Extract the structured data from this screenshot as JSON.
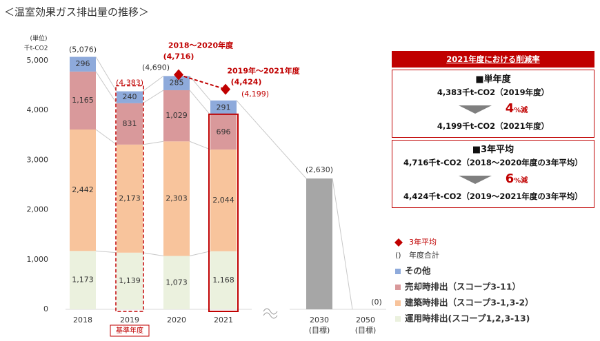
{
  "chart_data": {
    "type": "stacked_bar",
    "title": "＜温室効果ガス排出量の推移＞",
    "y_unit": [
      "(単位)",
      "千t-CO2"
    ],
    "categories": [
      "2018",
      "2019",
      "2020",
      "2021",
      "2030",
      "2050"
    ],
    "category_notes": [
      null,
      "基準年度",
      null,
      null,
      "(目標)",
      "(目標)"
    ],
    "ylim": [
      0,
      5000
    ],
    "yticks": [
      0,
      {
        "value": 1000,
        "label": "1,000"
      },
      {
        "value": 2000,
        "label": "2,000"
      },
      {
        "value": 3000,
        "label": "3,000"
      },
      {
        "value": 4000,
        "label": "4,000"
      },
      {
        "value": 5000,
        "label": "5,000"
      }
    ],
    "series": [
      {
        "name": "運用時排出(スコープ1,2,3-13)",
        "color": "#ebf1de",
        "values": [
          1173,
          1139,
          1073,
          1168,
          null,
          null
        ],
        "value_labels": [
          "1,173",
          "1,139",
          "1,073",
          "1,168",
          null,
          null
        ]
      },
      {
        "name": "建築時排出（スコープ3-1,3-2）",
        "color": "#f8c49c",
        "values": [
          2442,
          2173,
          2303,
          2044,
          null,
          null
        ],
        "value_labels": [
          "2,442",
          "2,173",
          "2,303",
          "2,044",
          null,
          null
        ]
      },
      {
        "name": "売却時排出（スコープ3-11）",
        "color": "#d9999b",
        "values": [
          1165,
          831,
          1029,
          696,
          null,
          null
        ],
        "value_labels": [
          "1,165",
          "831",
          "1,029",
          "696",
          null,
          null
        ]
      },
      {
        "name": "その他",
        "color": "#8eaadb",
        "values": [
          296,
          240,
          285,
          291,
          null,
          null
        ],
        "value_labels": [
          "296",
          "240",
          "285",
          "291",
          null,
          null
        ]
      }
    ],
    "target": {
      "color": "#a6a6a6",
      "values": [
        null,
        null,
        null,
        null,
        2630,
        0
      ]
    },
    "totals": {
      "name": "年度合計",
      "marker": "()",
      "values": [
        5076,
        4383,
        4690,
        4199,
        2630,
        0
      ],
      "value_labels": [
        "(5,076)",
        "(4,383)",
        "(4,690)",
        "(4,199)",
        "(2,630)",
        "(0)"
      ]
    },
    "average": {
      "name": "3年平均",
      "color": "#c00000",
      "values": [
        null,
        null,
        4716,
        4424,
        null,
        null
      ],
      "value_labels": [
        null,
        null,
        "(4,716)",
        "(4,424)",
        null,
        null
      ],
      "labels": [
        null,
        null,
        "2018～2020年度",
        "2019年～2021年度",
        null,
        null
      ]
    }
  },
  "panel": {
    "title": "2021年度における削減率",
    "sections": [
      {
        "heading": "■単年度",
        "from": "4,383千t-CO2（2019年度）",
        "rate": "4",
        "rate_unit": "%減",
        "to": "4,199千t-CO2（2021年度）"
      },
      {
        "heading": "■3年平均",
        "from": "4,716千t-CO2（2018～2020年度の3年平均）",
        "rate": "6",
        "rate_unit": "%減",
        "to": "4,424千t-CO2（2019～2021年度の3年平均）"
      }
    ]
  }
}
